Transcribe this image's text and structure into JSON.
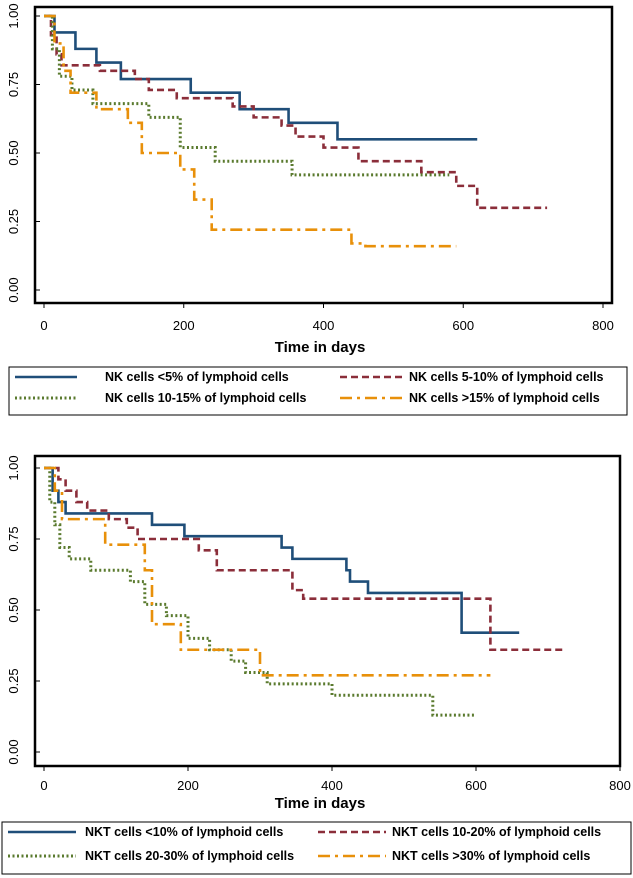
{
  "chart_data": [
    {
      "type": "line",
      "subtype": "kaplan-meier step curves",
      "xlabel": "Time in days",
      "ylabel": "",
      "xlim": [
        0,
        800
      ],
      "ylim": [
        0,
        1
      ],
      "xticks": [
        "0",
        "200",
        "400",
        "600",
        "800"
      ],
      "yticks": [
        "0.00",
        "0.25",
        "0.50",
        "0.75",
        "1.00"
      ],
      "legend_position": "bottom",
      "series": [
        {
          "name": "NK cells <5% of lymphoid cells",
          "color": "#1f4e79",
          "dash": "solid",
          "x": [
            0,
            15,
            45,
            75,
            110,
            150,
            210,
            280,
            350,
            420,
            620
          ],
          "y": [
            1.0,
            0.94,
            0.88,
            0.83,
            0.77,
            0.77,
            0.72,
            0.66,
            0.61,
            0.55,
            0.55
          ]
        },
        {
          "name": "NK cells 5-10% of lymphoid cells",
          "color": "#8b2e3a",
          "dash": "dashed",
          "x": [
            0,
            10,
            18,
            25,
            80,
            130,
            150,
            190,
            270,
            300,
            340,
            360,
            400,
            450,
            500,
            540,
            590,
            620,
            720
          ],
          "y": [
            1.0,
            0.93,
            0.86,
            0.82,
            0.8,
            0.77,
            0.73,
            0.7,
            0.67,
            0.63,
            0.6,
            0.56,
            0.52,
            0.47,
            0.47,
            0.43,
            0.38,
            0.3,
            0.3
          ]
        },
        {
          "name": "NK cells 10-15% of lymphoid cells",
          "color": "#5a7a2e",
          "dash": "dotted",
          "x": [
            0,
            12,
            22,
            40,
            70,
            150,
            195,
            245,
            355,
            520,
            580
          ],
          "y": [
            1.0,
            0.88,
            0.78,
            0.73,
            0.68,
            0.63,
            0.52,
            0.47,
            0.42,
            0.42,
            0.42
          ]
        },
        {
          "name": "NK cells >15% of lymphoid cells",
          "color": "#e8900a",
          "dash": "dashdot",
          "x": [
            0,
            15,
            28,
            38,
            75,
            120,
            140,
            195,
            215,
            240,
            440,
            460,
            590
          ],
          "y": [
            1.0,
            0.9,
            0.8,
            0.72,
            0.66,
            0.61,
            0.5,
            0.44,
            0.33,
            0.22,
            0.17,
            0.16,
            0.16
          ]
        }
      ]
    },
    {
      "type": "line",
      "subtype": "kaplan-meier step curves",
      "xlabel": "Time in days",
      "ylabel": "",
      "xlim": [
        0,
        800
      ],
      "ylim": [
        0,
        1
      ],
      "xticks": [
        "0",
        "200",
        "400",
        "600",
        "800"
      ],
      "yticks": [
        "0.00",
        "0.25",
        "0.50",
        "0.75",
        "1.00"
      ],
      "legend_position": "bottom",
      "series": [
        {
          "name": "NKT cells <10% of lymphoid cells",
          "color": "#1f4e79",
          "dash": "solid",
          "x": [
            0,
            12,
            20,
            30,
            150,
            195,
            330,
            345,
            420,
            425,
            450,
            575,
            580,
            660
          ],
          "y": [
            1.0,
            0.92,
            0.88,
            0.84,
            0.8,
            0.76,
            0.72,
            0.68,
            0.64,
            0.6,
            0.56,
            0.56,
            0.42,
            0.42
          ]
        },
        {
          "name": "NKT cells 10-20% of lymphoid cells",
          "color": "#8b2e3a",
          "dash": "dashed",
          "x": [
            0,
            20,
            30,
            45,
            60,
            90,
            115,
            130,
            215,
            240,
            345,
            360,
            620,
            720
          ],
          "y": [
            1.0,
            0.96,
            0.92,
            0.88,
            0.85,
            0.82,
            0.79,
            0.75,
            0.71,
            0.64,
            0.57,
            0.54,
            0.36,
            0.36
          ]
        },
        {
          "name": "NKT cells 20-30% of lymphoid cells",
          "color": "#5a7a2e",
          "dash": "dotted",
          "x": [
            0,
            8,
            15,
            22,
            35,
            65,
            120,
            140,
            170,
            200,
            230,
            260,
            280,
            310,
            400,
            540,
            600
          ],
          "y": [
            1.0,
            0.88,
            0.8,
            0.72,
            0.68,
            0.64,
            0.6,
            0.52,
            0.48,
            0.4,
            0.36,
            0.32,
            0.28,
            0.24,
            0.2,
            0.13,
            0.13
          ]
        },
        {
          "name": "NKT cells >30% of lymphoid cells",
          "color": "#e8900a",
          "dash": "dashdot",
          "x": [
            0,
            15,
            25,
            75,
            85,
            140,
            150,
            190,
            300,
            620
          ],
          "y": [
            1.0,
            0.92,
            0.82,
            0.82,
            0.73,
            0.64,
            0.45,
            0.36,
            0.27,
            0.27
          ]
        }
      ]
    }
  ]
}
